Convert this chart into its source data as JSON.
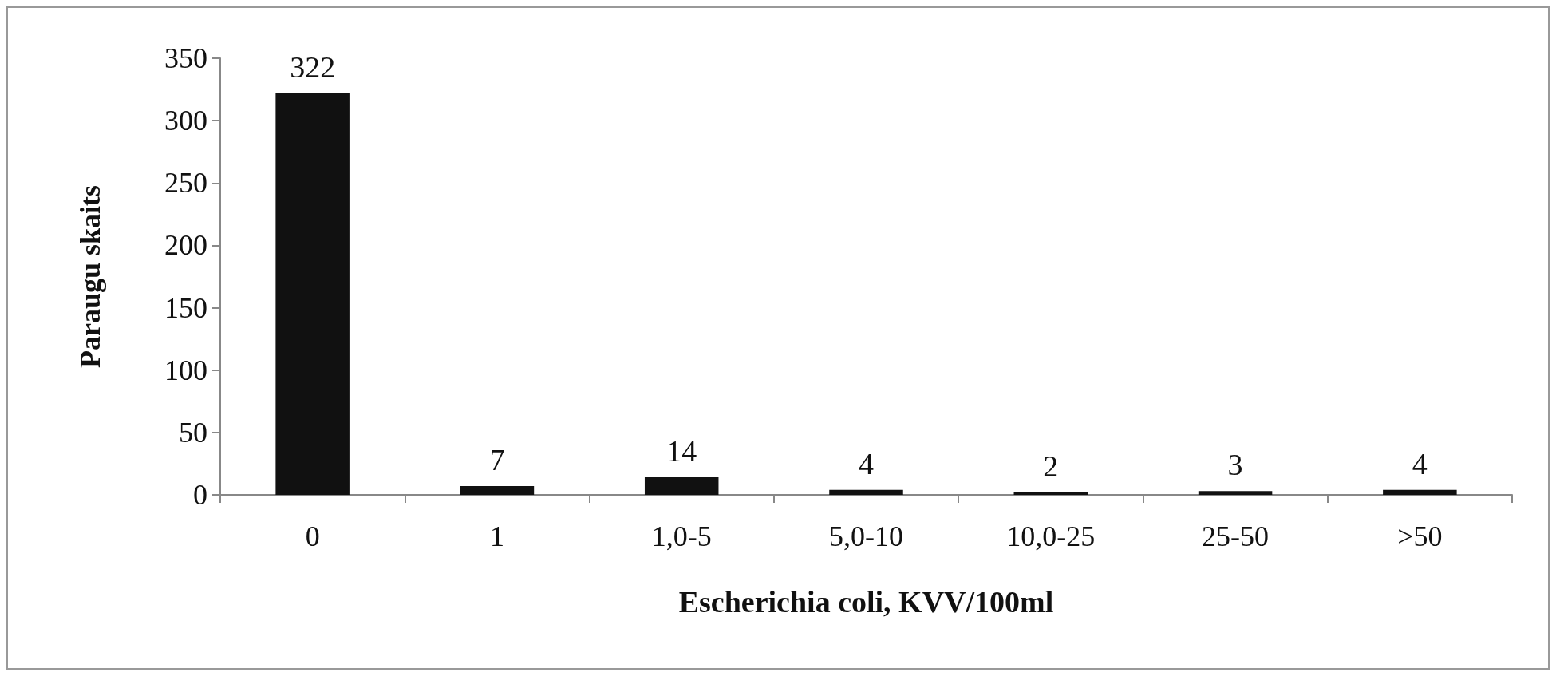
{
  "chart_data": {
    "type": "bar",
    "xlabel": "Escherichia coli, KVV/100ml",
    "ylabel": "Paraugu skaits",
    "categories": [
      "0",
      "1",
      "1,0-5",
      "5,0-10",
      "10,0-25",
      "25-50",
      ">50"
    ],
    "values": [
      322,
      7,
      14,
      4,
      2,
      3,
      4
    ],
    "color": "#111111",
    "ylim": [
      0,
      350
    ],
    "yticks": [
      0,
      50,
      100,
      150,
      200,
      250,
      300,
      350
    ],
    "grid": false,
    "data_labels": true
  }
}
